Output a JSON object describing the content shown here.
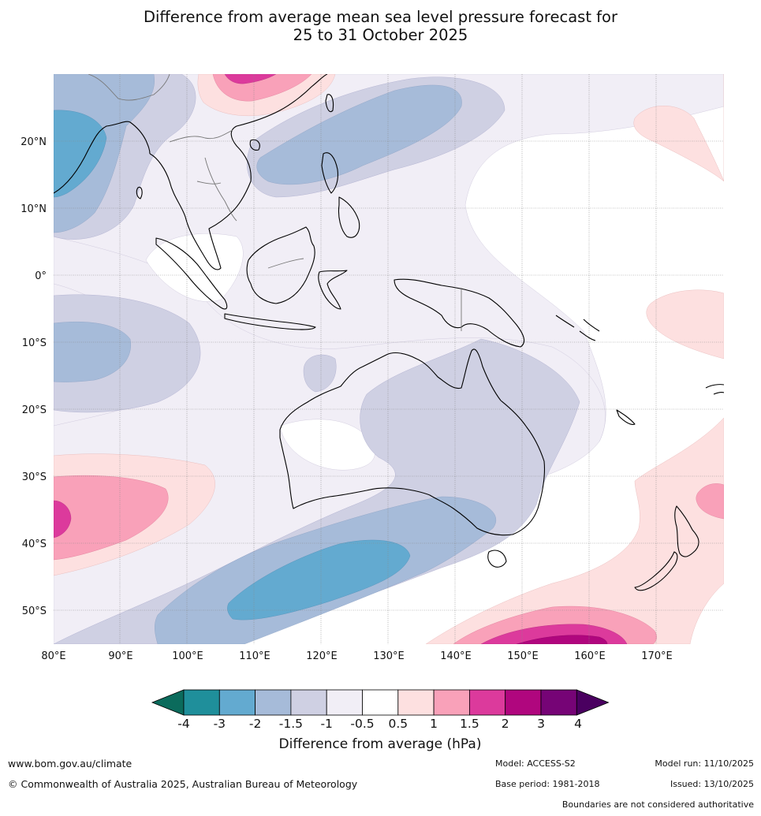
{
  "title": {
    "line1": "Difference from average mean sea level pressure forecast for",
    "line2": "25 to 31 October 2025"
  },
  "map": {
    "lon_labels": [
      "80°E",
      "90°E",
      "100°E",
      "110°E",
      "120°E",
      "130°E",
      "140°E",
      "150°E",
      "160°E",
      "170°E"
    ],
    "lat_labels": [
      "20°N",
      "10°N",
      "0°",
      "10°S",
      "20°S",
      "30°S",
      "40°S",
      "50°S"
    ],
    "extent": {
      "lon_min": 80,
      "lon_max": 180,
      "lat_min": -55,
      "lat_max": 30
    }
  },
  "legend": {
    "title": "Difference from average (hPa)",
    "tick_labels": [
      "-4",
      "-3",
      "-2",
      "-1.5",
      "-1",
      "-0.5",
      "0.5",
      "1",
      "1.5",
      "2",
      "3",
      "4"
    ],
    "colors": [
      "#0b6b5c",
      "#1f8f9b",
      "#63aad0",
      "#a6bbd9",
      "#cfd0e3",
      "#f1eef6",
      "#ffffff",
      "#fde0e0",
      "#f9a1b9",
      "#dc3a9c",
      "#b0067e",
      "#760476",
      "#4a0060"
    ]
  },
  "footer": {
    "website": "www.bom.gov.au/climate",
    "copyright": "© Commonwealth of Australia 2025, Australian Bureau of Meteorology",
    "model": "Model: ACCESS-S2",
    "base_period": "Base period: 1981-2018",
    "model_run": "Model run: 11/10/2025",
    "issued": "Issued: 13/10/2025",
    "disclaimer": "Boundaries are not considered authoritative"
  }
}
